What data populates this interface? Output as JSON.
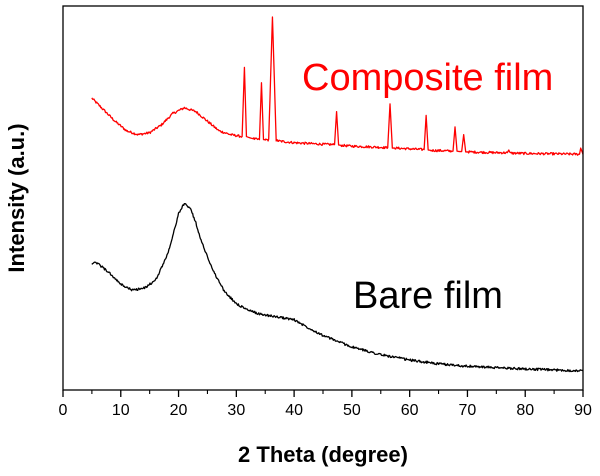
{
  "chart_data": {
    "type": "line",
    "title": "",
    "xlabel": "2 Theta (degree)",
    "ylabel": "Intensity (a.u.)",
    "xlim": [
      0,
      90
    ],
    "xticks": [
      0,
      10,
      20,
      30,
      40,
      50,
      60,
      70,
      80,
      90
    ],
    "ylim": [
      0,
      100
    ],
    "y_tick_labels_shown": false,
    "grid": false,
    "series": [
      {
        "name": "Composite film",
        "color": "#ff0000",
        "label": "Composite film",
        "x": [
          5,
          7,
          9,
          11,
          13,
          15,
          17,
          19,
          21,
          23,
          25,
          27,
          29,
          31,
          31.4,
          31.75,
          32.1,
          32.5,
          33,
          34,
          34.35,
          34.7,
          35,
          35.6,
          36.25,
          36.9,
          37.5,
          40,
          45,
          47,
          47.35,
          47.7,
          48.2,
          50,
          55,
          56.2,
          56.6,
          57,
          57.5,
          60,
          62.5,
          62.85,
          63.2,
          63.7,
          66,
          67.5,
          67.85,
          68.2,
          68.6,
          69,
          69.35,
          69.7,
          70.2,
          75,
          76.9,
          77.15,
          77.4,
          80,
          85,
          89.4,
          89.6,
          90
        ],
        "y": [
          76,
          73,
          70,
          67.5,
          66.5,
          67,
          69,
          72,
          73.5,
          72.5,
          70,
          67.5,
          66.5,
          66,
          84,
          66,
          65.8,
          65.6,
          65.4,
          65.2,
          80,
          65.2,
          65.2,
          65.1,
          97,
          65,
          64.8,
          64.4,
          64,
          63.9,
          72.5,
          63.8,
          63.7,
          63.5,
          63.2,
          63.1,
          74.5,
          63,
          63,
          62.8,
          62.6,
          71.5,
          62.5,
          62.4,
          62.3,
          62.2,
          68.5,
          62.2,
          62.1,
          62.1,
          66.5,
          62,
          62,
          61.8,
          61.8,
          62.5,
          61.7,
          61.6,
          61.5,
          61.4,
          63,
          61.4
        ]
      },
      {
        "name": "Bare film",
        "color": "#000000",
        "label": "Bare film",
        "x": [
          5,
          6,
          8,
          10,
          12,
          14,
          16,
          18,
          19,
          20,
          21,
          22,
          23,
          24,
          26,
          28,
          30,
          32,
          34,
          36,
          38,
          40,
          42,
          45,
          50,
          55,
          60,
          65,
          70,
          75,
          80,
          85,
          90
        ],
        "y": [
          33,
          33,
          30.5,
          27.5,
          26,
          26.5,
          28.5,
          35,
          40,
          46,
          48.5,
          47.5,
          43.5,
          38.5,
          31,
          25.5,
          22.5,
          20.8,
          19.8,
          19.3,
          18.8,
          18.3,
          16.6,
          14.2,
          11.2,
          9.2,
          7.8,
          6.8,
          6.2,
          5.8,
          5.5,
          5.2,
          5
        ]
      }
    ]
  }
}
